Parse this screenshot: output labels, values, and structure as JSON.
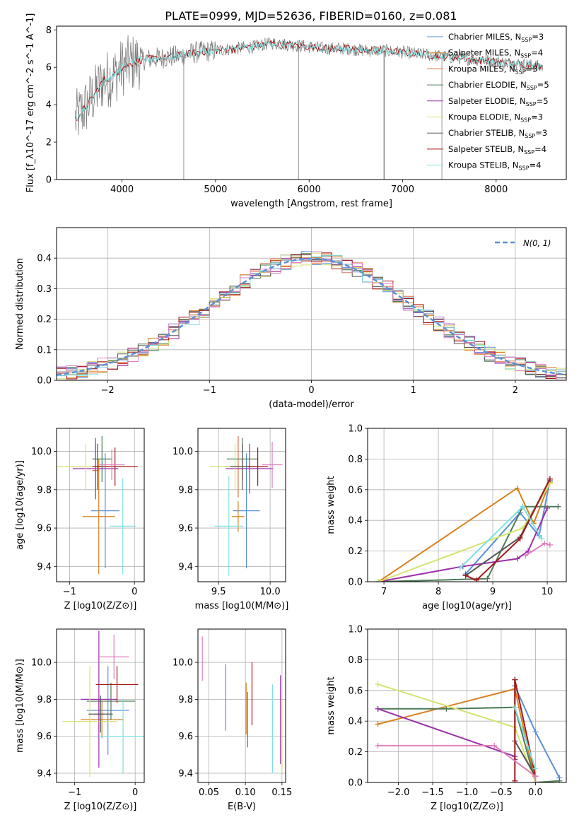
{
  "title": "PLATE=0999, MJD=52636, FIBERID=0160, z=0.081",
  "colors": [
    "#5b8fd6",
    "#d9801f",
    "#e06a3a",
    "#4e7a57",
    "#9b30a8",
    "#d4e36c",
    "#555555",
    "#a31818",
    "#7fe0e0",
    "#e07fbf"
  ],
  "chart_data": [
    {
      "type": "line",
      "panel": "spectrum",
      "xlabel": "wavelength [Angstrom, rest frame]",
      "ylabel": "Flux [f_λ10^-17 erg cm^-2 s^-1 A^-1]",
      "xlim": [
        3300,
        8750
      ],
      "ylim": [
        0,
        8.2
      ],
      "xticks": [
        "4000",
        "5000",
        "6000",
        "7000",
        "8000"
      ],
      "yticks": [
        "0",
        "2",
        "4",
        "6",
        "8"
      ],
      "data_continuum": {
        "x": [
          3500,
          3600,
          3700,
          3800,
          3900,
          4000,
          4100,
          4200,
          4400,
          4600,
          4800,
          5000,
          5200,
          5400,
          5600,
          5800,
          6000,
          6200,
          6400,
          6600,
          6800,
          7000,
          7200,
          7400,
          7600,
          7800,
          8000,
          8200,
          8400,
          8500
        ],
        "y": [
          3.2,
          3.8,
          4.5,
          5.3,
          5.5,
          6.0,
          6.2,
          6.4,
          6.5,
          6.6,
          6.8,
          6.9,
          7.0,
          7.1,
          7.3,
          7.2,
          7.1,
          7.0,
          7.0,
          6.9,
          6.9,
          6.8,
          6.7,
          6.6,
          6.5,
          6.4,
          6.3,
          6.2,
          6.1,
          6.0
        ]
      },
      "legend": [
        {
          "label": "Chabrier MILES, N",
          "sub": "SSP",
          "eq": "=3",
          "color": "#5b8fd6"
        },
        {
          "label": "Salpeter MILES, N",
          "sub": "SSP",
          "eq": "=4",
          "color": "#d9801f"
        },
        {
          "label": "Kroupa MILES, N",
          "sub": "SSP",
          "eq": "=3",
          "color": "#e06a3a"
        },
        {
          "label": "Chabrier ELODIE, N",
          "sub": "SSP",
          "eq": "=5",
          "color": "#4e7a57"
        },
        {
          "label": "Salpeter ELODIE, N",
          "sub": "SSP",
          "eq": "=5",
          "color": "#9b30a8"
        },
        {
          "label": "Kroupa ELODIE, N",
          "sub": "SSP",
          "eq": "=3",
          "color": "#d4e36c"
        },
        {
          "label": "Chabrier STELIB, N",
          "sub": "SSP",
          "eq": "=3",
          "color": "#555555"
        },
        {
          "label": "Salpeter STELIB, N",
          "sub": "SSP",
          "eq": "=4",
          "color": "#a31818"
        },
        {
          "label": "Kroupa STELIB, N",
          "sub": "SSP",
          "eq": "=4",
          "color": "#7fe0e0"
        }
      ]
    },
    {
      "type": "line",
      "panel": "residuals",
      "xlabel": "(data-model)/error",
      "ylabel": "Normed distribution",
      "xlim": [
        -2.5,
        2.5
      ],
      "ylim": [
        0,
        0.5
      ],
      "xticks": [
        "−2",
        "−1",
        "0",
        "1",
        "2"
      ],
      "yticks": [
        "0.0",
        "0.1",
        "0.2",
        "0.3",
        "0.4"
      ],
      "grid": true,
      "legend": "upper right",
      "series": [
        {
          "name": "N(0, 1)",
          "function": "gaussian",
          "mean": 0,
          "sigma": 1,
          "color": "#5b8fd6",
          "dashed": true
        }
      ],
      "histogram_bin_width": 0.1
    },
    {
      "type": "scatter",
      "panel": "age-vs-Z",
      "xlabel": "Z [log10(Z/Z⊙)]",
      "ylabel": "age  [log10(age/yr)]",
      "xlim": [
        -1.2,
        0.15
      ],
      "ylim": [
        9.32,
        10.12
      ],
      "xticks": [
        "−1",
        "0"
      ],
      "yticks": [
        "9.4",
        "9.6",
        "9.8",
        "10.0"
      ],
      "grid": true,
      "points": [
        {
          "x": -0.45,
          "y": 9.69,
          "xerr": 0.22,
          "yerr": 0.3,
          "color": "#5b8fd6"
        },
        {
          "x": -0.55,
          "y": 9.66,
          "xerr": 0.25,
          "yerr": 0.3,
          "color": "#d9801f"
        },
        {
          "x": -0.6,
          "y": 9.9,
          "xerr": 0.05,
          "yerr": 0.14,
          "color": "#e06a3a"
        },
        {
          "x": -0.5,
          "y": 9.96,
          "xerr": 0.15,
          "yerr": 0.12,
          "color": "#4e7a57"
        },
        {
          "x": -0.6,
          "y": 9.91,
          "xerr": 0.35,
          "yerr": 0.16,
          "color": "#9b30a8"
        },
        {
          "x": -0.75,
          "y": 9.92,
          "xerr": 0.45,
          "yerr": 0.12,
          "color": "#d4e36c"
        },
        {
          "x": -0.57,
          "y": 9.92,
          "xerr": 0.05,
          "yerr": 0.12,
          "color": "#555555"
        },
        {
          "x": -0.3,
          "y": 9.92,
          "xerr": 0.35,
          "yerr": 0.1,
          "color": "#a31818"
        },
        {
          "x": -0.18,
          "y": 9.61,
          "xerr": 0.2,
          "yerr": 0.25,
          "color": "#7fe0e0"
        },
        {
          "x": -0.35,
          "y": 9.93,
          "xerr": 0.2,
          "yerr": 0.08,
          "color": "#e07fbf"
        }
      ]
    },
    {
      "type": "scatter",
      "panel": "age-vs-mass",
      "xlabel": "mass [log10(M/M⊙)]",
      "ylabel": "",
      "xlim": [
        9.3,
        10.15
      ],
      "ylim": [
        9.32,
        10.12
      ],
      "xticks": [
        "9.5",
        "10.0"
      ],
      "yticks": [
        "9.4",
        "9.6",
        "9.8",
        "10.0"
      ],
      "grid": true,
      "points": [
        {
          "x": 9.77,
          "y": 9.69,
          "xerr": 0.13,
          "yerr": 0.3,
          "color": "#5b8fd6"
        },
        {
          "x": 9.69,
          "y": 9.66,
          "xerr": 0.06,
          "yerr": 0.08,
          "color": "#d9801f"
        },
        {
          "x": 9.69,
          "y": 9.92,
          "xerr": 0.12,
          "yerr": 0.16,
          "color": "#e06a3a"
        },
        {
          "x": 9.73,
          "y": 9.96,
          "xerr": 0.15,
          "yerr": 0.11,
          "color": "#4e7a57"
        },
        {
          "x": 9.8,
          "y": 9.91,
          "xerr": 0.23,
          "yerr": 0.13,
          "color": "#9b30a8"
        },
        {
          "x": 9.66,
          "y": 9.92,
          "xerr": 0.25,
          "yerr": 0.12,
          "color": "#d4e36c"
        },
        {
          "x": 9.73,
          "y": 9.92,
          "xerr": 0.12,
          "yerr": 0.12,
          "color": "#555555"
        },
        {
          "x": 9.88,
          "y": 9.92,
          "xerr": 0.1,
          "yerr": 0.1,
          "color": "#a31818"
        },
        {
          "x": 9.6,
          "y": 9.61,
          "xerr": 0.14,
          "yerr": 0.26,
          "color": "#7fe0e0"
        },
        {
          "x": 10.02,
          "y": 9.93,
          "xerr": 0.1,
          "yerr": 0.12,
          "color": "#e07fbf"
        }
      ]
    },
    {
      "type": "line",
      "panel": "weight-vs-age",
      "xlabel": "age  [log10(age/yr)]",
      "ylabel": "mass weight",
      "xlim": [
        6.7,
        10.35
      ],
      "ylim": [
        0,
        1.0
      ],
      "xticks": [
        "7",
        "8",
        "9",
        "10"
      ],
      "yticks": [
        "0.0",
        "0.2",
        "0.4",
        "0.6",
        "0.8",
        "1.0"
      ],
      "grid": true,
      "series": [
        {
          "color": "#5b8fd6",
          "x": [
            8.5,
            9.5,
            9.85,
            10.05
          ],
          "y": [
            0.05,
            0.45,
            0.3,
            0.66
          ]
        },
        {
          "color": "#d9801f",
          "x": [
            6.9,
            9.45,
            9.75,
            10.05
          ],
          "y": [
            0.0,
            0.61,
            0.38,
            0.65
          ]
        },
        {
          "color": "#4e7a57",
          "x": [
            6.9,
            8.9,
            9.55,
            10.2
          ],
          "y": [
            0.0,
            0.02,
            0.49,
            0.49
          ]
        },
        {
          "color": "#9b30a8",
          "x": [
            6.9,
            8.45,
            9.45,
            9.65,
            10.0
          ],
          "y": [
            0.0,
            0.1,
            0.15,
            0.2,
            0.48
          ]
        },
        {
          "color": "#d4e36c",
          "x": [
            6.9,
            9.55,
            10.05
          ],
          "y": [
            0.0,
            0.35,
            0.64
          ]
        },
        {
          "color": "#555555",
          "x": [
            8.5,
            9.5,
            10.05
          ],
          "y": [
            0.04,
            0.29,
            0.67
          ]
        },
        {
          "color": "#a31818",
          "x": [
            8.5,
            8.7,
            9.5,
            10.05
          ],
          "y": [
            0.04,
            0.01,
            0.28,
            0.67
          ]
        },
        {
          "color": "#7fe0e0",
          "x": [
            8.4,
            9.55,
            9.9
          ],
          "y": [
            0.09,
            0.49,
            0.28
          ]
        },
        {
          "color": "#e07fbf",
          "x": [
            9.6,
            9.95,
            10.05
          ],
          "y": [
            0.17,
            0.25,
            0.24
          ]
        }
      ]
    },
    {
      "type": "scatter",
      "panel": "mass-vs-Z",
      "xlabel": "Z [log10(Z/Z⊙)]",
      "ylabel": "mass [log10(M/M⊙)]",
      "xlim": [
        -1.3,
        0.15
      ],
      "ylim": [
        9.35,
        10.18
      ],
      "xticks": [
        "−1",
        "0"
      ],
      "yticks": [
        "9.4",
        "9.6",
        "9.8",
        "10.0"
      ],
      "grid": true,
      "points": [
        {
          "x": -0.45,
          "y": 9.74,
          "xerr": 0.35,
          "yerr": 0.24,
          "color": "#5b8fd6"
        },
        {
          "x": -0.55,
          "y": 9.69,
          "xerr": 0.35,
          "yerr": 0.1,
          "color": "#d9801f"
        },
        {
          "x": -0.6,
          "y": 9.72,
          "xerr": 0.08,
          "yerr": 0.08,
          "color": "#e06a3a"
        },
        {
          "x": -0.4,
          "y": 9.79,
          "xerr": 0.4,
          "yerr": 0.1,
          "color": "#4e7a57"
        },
        {
          "x": -0.6,
          "y": 9.8,
          "xerr": 0.3,
          "yerr": 0.37,
          "color": "#9b30a8"
        },
        {
          "x": -0.75,
          "y": 9.68,
          "xerr": 0.45,
          "yerr": 0.3,
          "color": "#d4e36c"
        },
        {
          "x": -0.57,
          "y": 9.72,
          "xerr": 0.2,
          "yerr": 0.1,
          "color": "#555555"
        },
        {
          "x": -0.3,
          "y": 9.88,
          "xerr": 0.35,
          "yerr": 0.1,
          "color": "#a31818"
        },
        {
          "x": -0.2,
          "y": 9.6,
          "xerr": 0.4,
          "yerr": 0.2,
          "color": "#7fe0e0"
        },
        {
          "x": -0.35,
          "y": 10.03,
          "xerr": 0.25,
          "yerr": 0.12,
          "color": "#e07fbf"
        }
      ]
    },
    {
      "type": "scatter",
      "panel": "mass-vs-EBV",
      "xlabel": "E(B-V)",
      "ylabel": "",
      "xlim": [
        0.035,
        0.155
      ],
      "ylim": [
        9.35,
        10.18
      ],
      "xticks": [
        "0.05",
        "0.10",
        "0.15"
      ],
      "yticks": [
        "9.4",
        "9.6",
        "9.8",
        "10.0"
      ],
      "grid": true,
      "points": [
        {
          "x": 0.073,
          "y": 9.81,
          "yerr": 0.18,
          "color": "#5b8fd6"
        },
        {
          "x": 0.101,
          "y": 9.75,
          "yerr": 0.14,
          "color": "#d9801f"
        },
        {
          "x": 0.103,
          "y": 9.69,
          "yerr": 0.15,
          "color": "#4e7a57"
        },
        {
          "x": 0.109,
          "y": 9.83,
          "yerr": 0.17,
          "color": "#a31818"
        },
        {
          "x": 0.137,
          "y": 9.64,
          "yerr": 0.24,
          "color": "#7fe0e0"
        },
        {
          "x": 0.148,
          "y": 9.69,
          "yerr": 0.24,
          "color": "#9b30a8"
        },
        {
          "x": 0.15,
          "y": 9.6,
          "yerr": 0.2,
          "color": "#d4e36c"
        },
        {
          "x": 0.041,
          "y": 10.02,
          "yerr": 0.12,
          "color": "#e07fbf"
        }
      ]
    },
    {
      "type": "line",
      "panel": "weight-vs-Z",
      "xlabel": "Z [log10(Z/Z⊙)]",
      "ylabel": "mass weight",
      "xlim": [
        -2.45,
        0.45
      ],
      "ylim": [
        0,
        1.0
      ],
      "xticks": [
        "−2.0",
        "−1.5",
        "−1.0",
        "−0.5",
        "0.0"
      ],
      "yticks": [
        "0.0",
        "0.2",
        "0.4",
        "0.6",
        "0.8",
        "1.0"
      ],
      "grid": true,
      "series": [
        {
          "color": "#5b8fd6",
          "x": [
            -0.3,
            0.0,
            0.35
          ],
          "y": [
            0.63,
            0.33,
            0.03
          ]
        },
        {
          "color": "#d9801f",
          "x": [
            -2.3,
            -0.3,
            0.0
          ],
          "y": [
            0.38,
            0.61,
            0.0
          ]
        },
        {
          "color": "#4e7a57",
          "x": [
            -2.3,
            -1.3,
            -0.3,
            0.0,
            0.35
          ],
          "y": [
            0.48,
            0.48,
            0.49,
            0.0,
            0.01
          ]
        },
        {
          "color": "#9b30a8",
          "x": [
            -2.3,
            -0.3,
            -0.3
          ],
          "y": [
            0.48,
            0.17,
            0.15
          ]
        },
        {
          "color": "#d4e36c",
          "x": [
            -2.3,
            -0.3,
            0.0
          ],
          "y": [
            0.64,
            0.36,
            0.0
          ]
        },
        {
          "color": "#555555",
          "x": [
            -0.3,
            -0.3,
            0.0
          ],
          "y": [
            0.67,
            0.27,
            0.04
          ]
        },
        {
          "color": "#a31818",
          "x": [
            -0.3,
            -0.3,
            0.0
          ],
          "y": [
            0.01,
            0.67,
            0.04
          ]
        },
        {
          "color": "#7fe0e0",
          "x": [
            -0.3,
            0.0
          ],
          "y": [
            0.49,
            0.09
          ]
        },
        {
          "color": "#e07fbf",
          "x": [
            -2.3,
            -0.6,
            0.0,
            0.0
          ],
          "y": [
            0.24,
            0.24,
            0.04,
            0.0
          ]
        }
      ]
    }
  ]
}
